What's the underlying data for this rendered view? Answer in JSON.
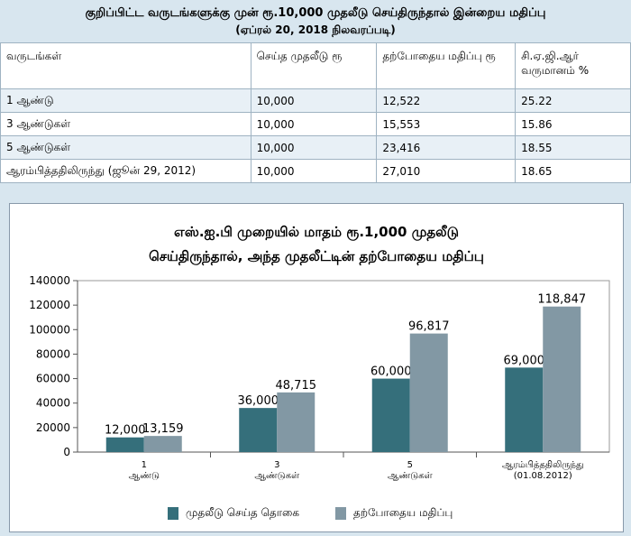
{
  "table": {
    "title": "குறிப்பிட்ட வருடங்களுக்கு முன் ரூ.10,000 முதலீடு செய்திருந்தால் இன்றைய மதிப்பு",
    "subtitle": "(ஏப்ரல் 20, 2018 நிலவரப்படி)",
    "headers": [
      "வருடங்கள்",
      "செய்த முதலீடு ரூ",
      "தற்போதைய மதிப்பு ரூ",
      "சி.ஏ.ஜி.ஆர் வருமானம் %"
    ],
    "rows": [
      [
        "1 ஆண்டு",
        "10,000",
        "12,522",
        "25.22"
      ],
      [
        "3 ஆண்டுகள்",
        "10,000",
        "15,553",
        "15.86"
      ],
      [
        "5 ஆண்டுகள்",
        "10,000",
        "23,416",
        "18.55"
      ],
      [
        "ஆரம்பித்ததிலிருந்து (ஜூன் 29, 2012)",
        "10,000",
        "27,010",
        "18.65"
      ]
    ]
  },
  "chart_data": {
    "type": "bar",
    "title_line1": "எஸ்.ஐ.பி முறையில் மாதம் ரூ.1,000 முதலீடு",
    "title_line2": "செய்திருந்தால், அந்த முதலீட்டின் தற்போதைய மதிப்பு",
    "categories": [
      [
        "1",
        "ஆண்டு"
      ],
      [
        "3",
        "ஆண்டுகள்"
      ],
      [
        "5",
        "ஆண்டுகள்"
      ],
      [
        "ஆரம்பித்ததிலிருந்து",
        "(01.08.2012)"
      ]
    ],
    "series": [
      {
        "name": "முதலீடு செய்த தொகை",
        "color": "#356f7b",
        "values": [
          12000,
          36000,
          60000,
          69000
        ],
        "labels": [
          "12,000",
          "36,000",
          "60,000",
          "69,000"
        ]
      },
      {
        "name": "தற்போதைய மதிப்பு",
        "color": "#8298a4",
        "values": [
          13159,
          48715,
          96817,
          118847
        ],
        "labels": [
          "13,159",
          "48,715",
          "96,817",
          "118,847"
        ]
      }
    ],
    "yticks": [
      0,
      20000,
      40000,
      60000,
      80000,
      100000,
      120000,
      140000
    ],
    "ylim": [
      0,
      140000
    ]
  }
}
